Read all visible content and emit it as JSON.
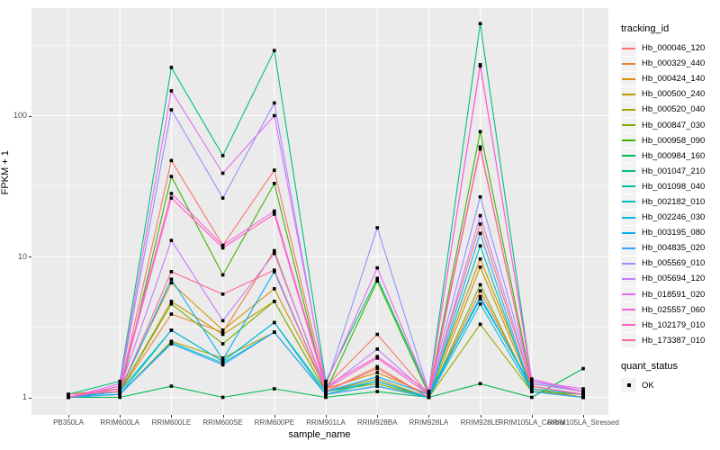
{
  "figure": {
    "background": "#FFFFFF",
    "panel_background": "#EBEBEB",
    "gridline_color": "#FFFFFF",
    "tick_label_color": "#4D4D4D",
    "point_color": "#000000"
  },
  "chart_data": {
    "type": "line",
    "title": "",
    "xlabel": "sample_name",
    "ylabel": "FPKM + 1",
    "y_scale": "log10",
    "y_ticks": [
      1,
      10,
      100
    ],
    "y_minor_ticks": [
      3.162,
      31.62,
      316.2
    ],
    "ylim": [
      0.75,
      580
    ],
    "grid": true,
    "legend_position": "right",
    "categories": [
      "PB350LA",
      "RRIM600LA",
      "RRIM600LE",
      "RRIM600SE",
      "RRIM600PE",
      "RRIM901LA",
      "RRIM928BA",
      "RRIM928LA",
      "RRIM928LE",
      "RRIM105LA_Control",
      "RRIM105LA_Stressed"
    ],
    "legend_title": "tracking_id",
    "marker": "square",
    "series": [
      {
        "name": "Hb_000046_120",
        "color": "#F8766D",
        "values": [
          1.0,
          1.15,
          48,
          12,
          41,
          1.2,
          2.8,
          1.05,
          17,
          1.2,
          1.05
        ]
      },
      {
        "name": "Hb_000329_440",
        "color": "#EA8331",
        "values": [
          1.0,
          1.1,
          3.9,
          2.9,
          11,
          1.1,
          1.65,
          1.0,
          5.7,
          1.15,
          1.0
        ]
      },
      {
        "name": "Hb_000424_140",
        "color": "#D89000",
        "values": [
          1.05,
          1.15,
          6.5,
          3.0,
          5.9,
          1.15,
          1.5,
          1.05,
          9.6,
          1.2,
          1.05
        ]
      },
      {
        "name": "Hb_000500_240",
        "color": "#C09B00",
        "values": [
          1.0,
          1.1,
          4.8,
          2.8,
          4.8,
          1.1,
          1.35,
          1.0,
          8.4,
          1.15,
          1.0
        ]
      },
      {
        "name": "Hb_000520_040",
        "color": "#A3A500",
        "values": [
          1.0,
          1.05,
          2.5,
          1.9,
          2.9,
          1.05,
          1.2,
          1.0,
          3.3,
          1.1,
          1.0
        ]
      },
      {
        "name": "Hb_000847_030",
        "color": "#7CAE00",
        "values": [
          1.0,
          1.1,
          4.6,
          2.4,
          4.8,
          1.1,
          1.25,
          1.0,
          6.3,
          1.1,
          1.05
        ]
      },
      {
        "name": "Hb_000958_090",
        "color": "#39B600",
        "values": [
          1.0,
          1.05,
          37,
          7.4,
          33,
          1.1,
          6.7,
          1.05,
          77,
          1.25,
          1.1
        ]
      },
      {
        "name": "Hb_000984_160",
        "color": "#00BB4E",
        "values": [
          1.0,
          1.0,
          1.2,
          1.0,
          1.15,
          1.0,
          1.1,
          1.0,
          1.25,
          1.0,
          1.6
        ]
      },
      {
        "name": "Hb_001047_210",
        "color": "#00BF7D",
        "values": [
          1.05,
          1.3,
          220,
          52,
          290,
          1.3,
          7.0,
          1.1,
          450,
          1.3,
          1.1
        ]
      },
      {
        "name": "Hb_001098_040",
        "color": "#00C1A3",
        "values": [
          1.0,
          1.05,
          3.0,
          1.8,
          3.4,
          1.05,
          1.3,
          1.0,
          11.9,
          1.1,
          1.0
        ]
      },
      {
        "name": "Hb_002182_010",
        "color": "#00BFC4",
        "values": [
          1.0,
          1.05,
          2.45,
          1.75,
          2.9,
          1.05,
          1.2,
          1.0,
          4.6,
          1.1,
          1.0
        ]
      },
      {
        "name": "Hb_002246_030",
        "color": "#00BAE0",
        "values": [
          1.0,
          1.1,
          3.0,
          1.8,
          3.4,
          1.1,
          1.3,
          1.0,
          5.2,
          1.15,
          1.05
        ]
      },
      {
        "name": "Hb_003195_080",
        "color": "#00B0F6",
        "values": [
          1.0,
          1.1,
          6.9,
          1.85,
          7.8,
          1.1,
          1.4,
          1.05,
          5.0,
          1.2,
          1.05
        ]
      },
      {
        "name": "Hb_004835_020",
        "color": "#35A2FF",
        "values": [
          1.0,
          1.05,
          2.4,
          1.7,
          2.9,
          1.05,
          1.2,
          1.0,
          14.6,
          1.1,
          1.0
        ]
      },
      {
        "name": "Hb_005569_010",
        "color": "#9590FF",
        "values": [
          1.0,
          1.2,
          110,
          26,
          123,
          1.2,
          16,
          1.1,
          26.5,
          1.3,
          1.1
        ]
      },
      {
        "name": "Hb_005694_120",
        "color": "#C77CFF",
        "values": [
          1.0,
          1.15,
          13,
          3.5,
          10.5,
          1.15,
          2.2,
          1.05,
          19.5,
          1.25,
          1.1
        ]
      },
      {
        "name": "Hb_018591_020",
        "color": "#E76BF3",
        "values": [
          1.0,
          1.25,
          150,
          39,
          100,
          1.25,
          8.3,
          1.1,
          230,
          1.3,
          1.15
        ]
      },
      {
        "name": "Hb_025557_060",
        "color": "#FA62DB",
        "values": [
          1.0,
          1.2,
          28,
          12,
          21,
          1.2,
          1.95,
          1.1,
          225,
          1.35,
          1.1
        ]
      },
      {
        "name": "Hb_102179_010",
        "color": "#FF61C3",
        "values": [
          1.0,
          1.15,
          26,
          11.5,
          20,
          1.15,
          1.9,
          1.05,
          60,
          1.2,
          1.05
        ]
      },
      {
        "name": "Hb_173387_010",
        "color": "#FF6A9A",
        "values": [
          1.05,
          1.1,
          7.8,
          5.4,
          8.0,
          1.1,
          1.6,
          1.0,
          58,
          1.2,
          1.05
        ]
      }
    ],
    "legend2": {
      "title": "quant_status",
      "items": [
        {
          "label": "OK",
          "marker": "square",
          "color": "#000000"
        }
      ]
    }
  }
}
